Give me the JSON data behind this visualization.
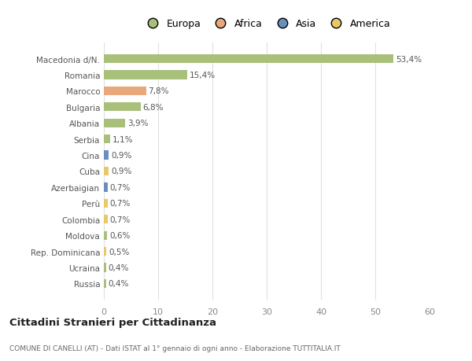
{
  "categories": [
    "Macedonia d/N.",
    "Romania",
    "Marocco",
    "Bulgaria",
    "Albania",
    "Serbia",
    "Cina",
    "Cuba",
    "Azerbaigian",
    "Perù",
    "Colombia",
    "Moldova",
    "Rep. Dominicana",
    "Ucraina",
    "Russia"
  ],
  "values": [
    53.4,
    15.4,
    7.8,
    6.8,
    3.9,
    1.1,
    0.9,
    0.9,
    0.7,
    0.7,
    0.7,
    0.6,
    0.5,
    0.4,
    0.4
  ],
  "labels": [
    "53,4%",
    "15,4%",
    "7,8%",
    "6,8%",
    "3,9%",
    "1,1%",
    "0,9%",
    "0,9%",
    "0,7%",
    "0,7%",
    "0,7%",
    "0,6%",
    "0,5%",
    "0,4%",
    "0,4%"
  ],
  "colors": [
    "#a8c07a",
    "#a8c07a",
    "#e8a87c",
    "#a8c07a",
    "#a8c07a",
    "#a8c07a",
    "#6a8fbd",
    "#e8c96a",
    "#6a8fbd",
    "#e8c96a",
    "#e8c96a",
    "#a8c07a",
    "#e8c96a",
    "#a8c07a",
    "#a8c07a"
  ],
  "legend_labels": [
    "Europa",
    "Africa",
    "Asia",
    "America"
  ],
  "legend_colors": [
    "#a8c07a",
    "#e8a87c",
    "#6a8fbd",
    "#e8c96a"
  ],
  "title": "Cittadini Stranieri per Cittadinanza",
  "subtitle": "COMUNE DI CANELLI (AT) - Dati ISTAT al 1° gennaio di ogni anno - Elaborazione TUTTITALIA.IT",
  "xlim": [
    0,
    60
  ],
  "xticks": [
    0,
    10,
    20,
    30,
    40,
    50,
    60
  ],
  "background_color": "#ffffff",
  "grid_color": "#e0e0e0",
  "bar_height": 0.55,
  "label_fontsize": 7.5,
  "ytick_fontsize": 7.5,
  "xtick_fontsize": 8
}
